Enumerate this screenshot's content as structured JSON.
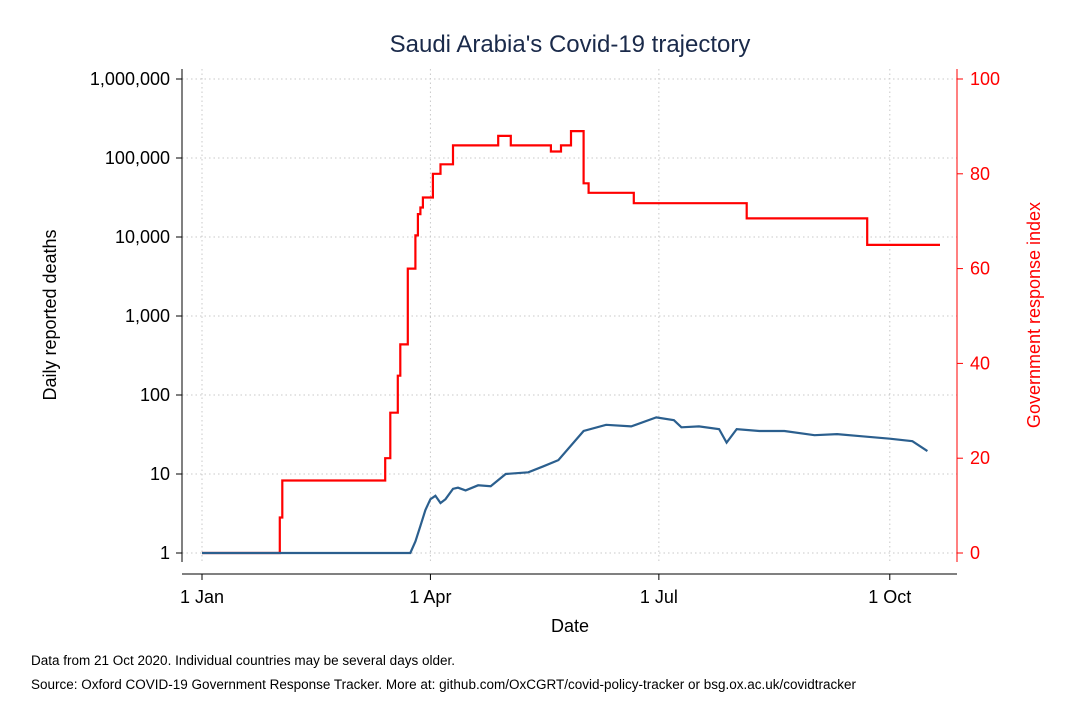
{
  "chart_data": {
    "type": "line",
    "title": "Saudi Arabia's Covid-19 trajectory",
    "xlabel": "Date",
    "ylabel_left": "Daily reported deaths",
    "ylabel_right": "Government response index",
    "x_ticks": [
      "1 Jan",
      "1 Apr",
      "1 Jul",
      "1 Oct"
    ],
    "x_range": [
      "2020-01-01",
      "2020-10-21"
    ],
    "y_left_scale": "log",
    "y_left_ticks": [
      "1",
      "10",
      "100",
      "1,000",
      "10,000",
      "100,000",
      "1,000,000"
    ],
    "y_left_ylim": [
      1,
      1000000
    ],
    "y_right_ticks": [
      "0",
      "20",
      "40",
      "60",
      "80",
      "100"
    ],
    "y_right_ylim": [
      0,
      100
    ],
    "grid": true,
    "colors": {
      "deaths": "#2b5f8e",
      "response": "#ff0000",
      "right_axis": "#ff0000",
      "grid": "#c8c8c8"
    },
    "series": [
      {
        "axis": "left",
        "color": "#2b5f8e",
        "x": [
          "2020-01-01",
          "2020-03-24",
          "2020-03-26",
          "2020-03-28",
          "2020-03-30",
          "2020-04-01",
          "2020-04-03",
          "2020-04-05",
          "2020-04-07",
          "2020-04-10",
          "2020-04-12",
          "2020-04-15",
          "2020-04-20",
          "2020-04-25",
          "2020-05-01",
          "2020-05-10",
          "2020-05-16",
          "2020-05-22",
          "2020-06-01",
          "2020-06-10",
          "2020-06-20",
          "2020-06-30",
          "2020-07-07",
          "2020-07-10",
          "2020-07-17",
          "2020-07-25",
          "2020-07-28",
          "2020-08-01",
          "2020-08-10",
          "2020-08-20",
          "2020-09-01",
          "2020-09-10",
          "2020-09-20",
          "2020-10-01",
          "2020-10-10",
          "2020-10-16"
        ],
        "values": [
          1,
          1,
          1.4,
          2.2,
          3.5,
          4.8,
          5.3,
          4.3,
          4.8,
          6.5,
          6.7,
          6.2,
          7.2,
          7,
          10,
          10.5,
          12.5,
          15,
          35,
          42,
          40,
          52,
          48,
          39,
          40,
          37,
          25,
          37,
          35,
          35,
          31,
          32,
          30,
          28,
          26,
          19.5
        ]
      },
      {
        "axis": "right",
        "color": "#ff0000",
        "x": [
          "2020-01-01",
          "2020-01-31",
          "2020-02-01",
          "2020-02-02",
          "2020-03-11",
          "2020-03-14",
          "2020-03-16",
          "2020-03-19",
          "2020-03-20",
          "2020-03-23",
          "2020-03-24",
          "2020-03-26",
          "2020-03-27",
          "2020-03-28",
          "2020-03-29",
          "2020-04-02",
          "2020-04-05",
          "2020-04-10",
          "2020-04-25",
          "2020-04-28",
          "2020-05-03",
          "2020-05-19",
          "2020-05-23",
          "2020-05-27",
          "2020-06-01",
          "2020-06-03",
          "2020-06-21",
          "2020-07-30",
          "2020-08-05",
          "2020-08-13",
          "2020-09-22",
          "2020-10-21"
        ],
        "values": [
          0,
          0,
          7.5,
          15.3,
          15.3,
          20,
          29.6,
          37.4,
          44,
          60,
          60,
          67,
          71.5,
          72.9,
          75,
          80,
          82,
          86,
          86,
          88,
          86,
          84.7,
          86,
          89,
          78,
          76,
          73.8,
          73.8,
          70.6,
          70.6,
          65,
          65
        ]
      }
    ],
    "footnote_1": "Data from 21 Oct 2020. Individual countries may be several days older.",
    "footnote_2": "Source: Oxford COVID-19 Government Response Tracker. More at: github.com/OxCGRT/covid-policy-tracker or bsg.ox.ac.uk/covidtracker"
  }
}
